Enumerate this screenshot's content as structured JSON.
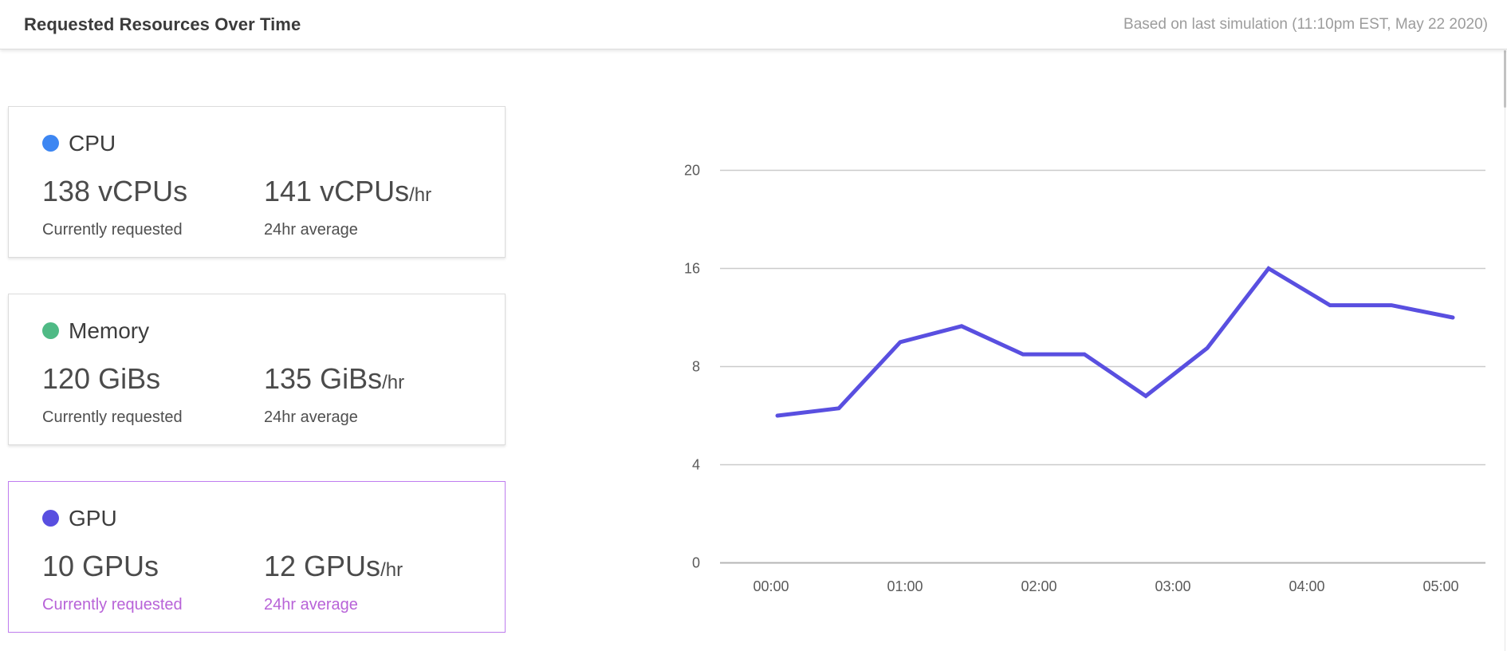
{
  "header": {
    "title": "Requested Resources Over Time",
    "subtitle": "Based on last simulation (11:10pm EST, May 22 2020)"
  },
  "cards": [
    {
      "name": "CPU",
      "dot_color": "#3d86f2",
      "current_value": "138 vCPUs",
      "current_suffix": "",
      "current_label": "Currently requested",
      "average_value": "141 vCPUs",
      "average_suffix": "/hr",
      "average_label": "24hr average",
      "selected": false
    },
    {
      "name": "Memory",
      "dot_color": "#4fba85",
      "current_value": "120 GiBs",
      "current_suffix": "",
      "current_label": "Currently requested",
      "average_value": "135 GiBs",
      "average_suffix": "/hr",
      "average_label": "24hr average",
      "selected": false
    },
    {
      "name": "GPU",
      "dot_color": "#594fe0",
      "current_value": "10 GPUs",
      "current_suffix": "",
      "current_label": "Currently requested",
      "average_value": "12 GPUs",
      "average_suffix": "/hr",
      "average_label": "24hr average",
      "selected": true
    }
  ],
  "colors": {
    "selected_border": "#c07ef0",
    "selected_label": "#b863d8",
    "line": "#594fe0",
    "grid": "#cbcbcb",
    "axis": "#b5b5b5",
    "tick_label": "#5a5a5a"
  },
  "chart_data": {
    "type": "line",
    "title": "",
    "xlabel": "",
    "ylabel": "",
    "series": [
      {
        "name": "GPU requested",
        "values": [
          6,
          6.3,
          10,
          11.3,
          9,
          9,
          6.8,
          9.5,
          16,
          13,
          13,
          12
        ]
      }
    ],
    "x_tick_labels": [
      "00:00",
      "01:00",
      "02:00",
      "03:00",
      "04:00",
      "05:00"
    ],
    "y_ticks": [
      0,
      4,
      8,
      16,
      20
    ],
    "y_ticks_evenly_spaced": true,
    "ylim": [
      0,
      20
    ],
    "grid": true,
    "legend": "none",
    "note": "12 points evenly spaced from 00:00 to just past 05:00; y gridlines at 0,4,8,16,20 drawn equidistant"
  }
}
